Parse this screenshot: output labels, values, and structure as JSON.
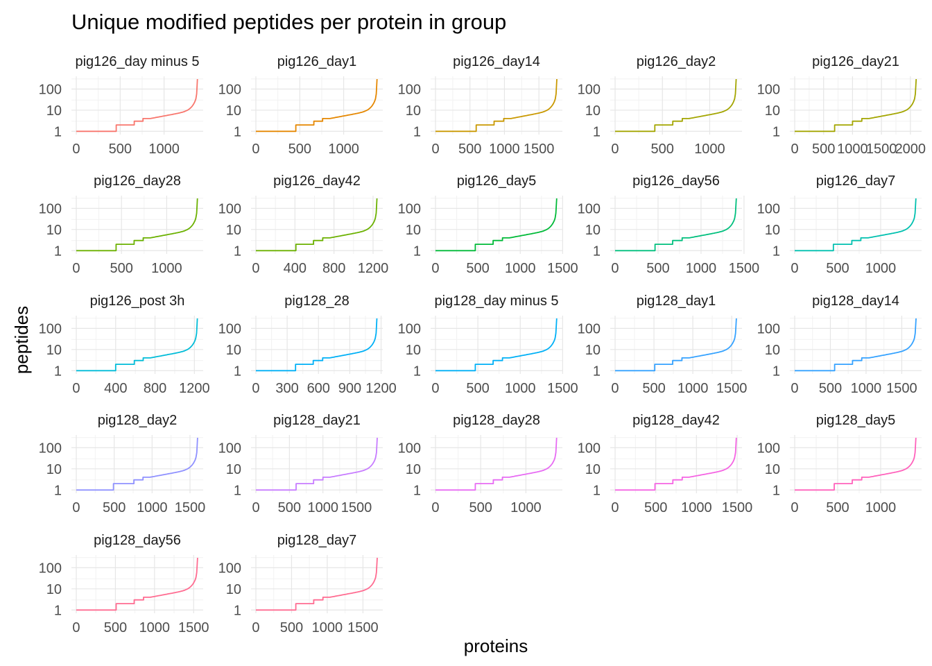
{
  "chart_data": {
    "type": "line",
    "title": "Unique modified peptides per protein in group",
    "xlabel": "proteins",
    "ylabel": "peptides",
    "y_scale": "log10",
    "y_ticks": [
      1,
      10,
      100
    ],
    "ylim": [
      0.7,
      400
    ],
    "grid": true,
    "legend": "none",
    "facets": [
      {
        "label": "pig126_day minus 5",
        "n": 1380,
        "steps": [
          455,
          660,
          760,
          840
        ],
        "xticks": [
          0,
          500,
          1000
        ],
        "color": "#F8766D"
      },
      {
        "label": "pig126_day1",
        "n": 1380,
        "steps": [
          455,
          660,
          760,
          840
        ],
        "xticks": [
          0,
          500,
          1000
        ],
        "color": "#E58700"
      },
      {
        "label": "pig126_day14",
        "n": 1760,
        "steps": [
          590,
          850,
          990,
          1090
        ],
        "xticks": [
          0,
          500,
          1000,
          1500
        ],
        "color": "#C99800"
      },
      {
        "label": "pig126_day2",
        "n": 1280,
        "steps": [
          420,
          610,
          710,
          780
        ],
        "xticks": [
          0,
          500,
          1000
        ],
        "color": "#A3A500"
      },
      {
        "label": "pig126_day21",
        "n": 2100,
        "steps": [
          690,
          1000,
          1160,
          1280
        ],
        "xticks": [
          0,
          500,
          1000,
          1500,
          2000
        ],
        "color": "#A3A500"
      },
      {
        "label": "pig126_day28",
        "n": 1340,
        "steps": [
          440,
          640,
          740,
          815
        ],
        "xticks": [
          0,
          500,
          1000
        ],
        "color": "#6BB100"
      },
      {
        "label": "pig126_day42",
        "n": 1240,
        "steps": [
          410,
          590,
          685,
          755
        ],
        "xticks": [
          0,
          400,
          800,
          1200
        ],
        "color": "#6BB100"
      },
      {
        "label": "pig126_day5",
        "n": 1430,
        "steps": [
          470,
          680,
          790,
          870
        ],
        "xticks": [
          0,
          500,
          1000,
          1500
        ],
        "color": "#00BA38"
      },
      {
        "label": "pig126_day56",
        "n": 1410,
        "steps": [
          465,
          670,
          780,
          860
        ],
        "xticks": [
          0,
          500,
          1000,
          1500
        ],
        "color": "#00BF7D"
      },
      {
        "label": "pig126_day7",
        "n": 1410,
        "steps": [
          450,
          665,
          770,
          850
        ],
        "xticks": [
          0,
          500,
          1000
        ],
        "color": "#00C0AF"
      },
      {
        "label": "pig126_post 3h",
        "n": 1230,
        "steps": [
          400,
          590,
          680,
          750
        ],
        "xticks": [
          0,
          400,
          800,
          1200
        ],
        "color": "#00BCD8"
      },
      {
        "label": "pig128_28",
        "n": 1160,
        "steps": [
          380,
          550,
          640,
          705
        ],
        "xticks": [
          0,
          300,
          600,
          900,
          1200
        ],
        "color": "#00B0F6"
      },
      {
        "label": "pig128_day minus 5",
        "n": 1430,
        "steps": [
          470,
          680,
          790,
          870
        ],
        "xticks": [
          0,
          500,
          1000,
          1500
        ],
        "color": "#00B0F6"
      },
      {
        "label": "pig128_day1",
        "n": 1560,
        "steps": [
          510,
          740,
          860,
          950
        ],
        "xticks": [
          0,
          500,
          1000,
          1500
        ],
        "color": "#35A2FF"
      },
      {
        "label": "pig128_day14",
        "n": 1700,
        "steps": [
          560,
          810,
          940,
          1040
        ],
        "xticks": [
          0,
          500,
          1000,
          1500
        ],
        "color": "#35A2FF"
      },
      {
        "label": "pig128_day2",
        "n": 1600,
        "steps": [
          490,
          760,
          880,
          970
        ],
        "xticks": [
          0,
          500,
          1000,
          1500
        ],
        "color": "#8F91FF"
      },
      {
        "label": "pig128_day21",
        "n": 1810,
        "steps": [
          600,
          860,
          1000,
          1100
        ],
        "xticks": [
          0,
          500,
          1000,
          1500
        ],
        "color": "#C77CFF"
      },
      {
        "label": "pig128_day28",
        "n": 1340,
        "steps": [
          440,
          640,
          740,
          815
        ],
        "xticks": [
          0,
          500,
          1000
        ],
        "color": "#E76BF3"
      },
      {
        "label": "pig128_day42",
        "n": 1490,
        "steps": [
          490,
          710,
          825,
          905
        ],
        "xticks": [
          0,
          500,
          1000,
          1500
        ],
        "color": "#F564E3"
      },
      {
        "label": "pig128_day5",
        "n": 1410,
        "steps": [
          460,
          670,
          780,
          860
        ],
        "xticks": [
          0,
          500,
          1000
        ],
        "color": "#FF62BC"
      },
      {
        "label": "pig128_day56",
        "n": 1550,
        "steps": [
          510,
          740,
          860,
          945
        ],
        "xticks": [
          0,
          500,
          1000,
          1500
        ],
        "color": "#FF6C91"
      },
      {
        "label": "pig128_day7",
        "n": 1700,
        "steps": [
          560,
          810,
          940,
          1035
        ],
        "xticks": [
          0,
          500,
          1000,
          1500
        ],
        "color": "#FF6C91"
      }
    ]
  }
}
